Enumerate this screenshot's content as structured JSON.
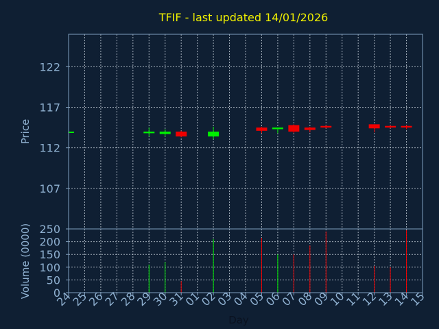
{
  "colors": {
    "background": "#0f1f33",
    "axis": "#7f9fbf",
    "grid": "#c8d2dc",
    "title": "#f0f000",
    "label": "#8fb0d0",
    "up": "#00f000",
    "down": "#f00000"
  },
  "chart_data": {
    "type": "candlestick",
    "title": "TFIF - last updated 14/01/2026",
    "xlabel": "Day",
    "x_ticks": [
      "24",
      "25",
      "26",
      "27",
      "28",
      "29",
      "30",
      "31",
      "01",
      "02",
      "03",
      "04",
      "05",
      "06",
      "07",
      "08",
      "09",
      "10",
      "11",
      "12",
      "13",
      "14",
      "15"
    ],
    "price_panel": {
      "ylabel": "Price",
      "ylim": [
        102,
        126
      ],
      "y_ticks": [
        107,
        112,
        117,
        122
      ],
      "candles": [
        {
          "day": "24",
          "open": 113.9,
          "high": 114.0,
          "low": 113.8,
          "close": 114.0
        },
        {
          "day": "29",
          "open": 113.8,
          "high": 114.5,
          "low": 113.4,
          "close": 114.0
        },
        {
          "day": "30",
          "open": 113.7,
          "high": 114.3,
          "low": 113.4,
          "close": 114.0
        },
        {
          "day": "31",
          "open": 114.0,
          "high": 114.1,
          "low": 113.3,
          "close": 113.4
        },
        {
          "day": "02",
          "open": 113.4,
          "high": 114.6,
          "low": 113.1,
          "close": 114.0
        },
        {
          "day": "05",
          "open": 114.5,
          "high": 114.6,
          "low": 113.8,
          "close": 114.1
        },
        {
          "day": "06",
          "open": 114.3,
          "high": 114.5,
          "low": 113.8,
          "close": 114.5
        },
        {
          "day": "07",
          "open": 114.8,
          "high": 114.9,
          "low": 113.8,
          "close": 114.0
        },
        {
          "day": "08",
          "open": 114.5,
          "high": 114.6,
          "low": 113.9,
          "close": 114.2
        },
        {
          "day": "09",
          "open": 114.7,
          "high": 114.8,
          "low": 114.4,
          "close": 114.5
        },
        {
          "day": "12",
          "open": 114.9,
          "high": 114.9,
          "low": 113.9,
          "close": 114.4
        },
        {
          "day": "13",
          "open": 114.7,
          "high": 114.8,
          "low": 114.4,
          "close": 114.5
        },
        {
          "day": "14",
          "open": 114.7,
          "high": 114.8,
          "low": 114.3,
          "close": 114.5
        }
      ]
    },
    "volume_panel": {
      "ylabel": "Volume (0000)",
      "ylim": [
        0,
        250
      ],
      "y_ticks": [
        0,
        50,
        100,
        150,
        200,
        250
      ],
      "bars": [
        {
          "day": "29",
          "value": 110,
          "direction": "up"
        },
        {
          "day": "30",
          "value": 120,
          "direction": "up"
        },
        {
          "day": "31",
          "value": 45,
          "direction": "down"
        },
        {
          "day": "02",
          "value": 210,
          "direction": "up"
        },
        {
          "day": "05",
          "value": 215,
          "direction": "down"
        },
        {
          "day": "06",
          "value": 150,
          "direction": "up"
        },
        {
          "day": "07",
          "value": 150,
          "direction": "down"
        },
        {
          "day": "08",
          "value": 185,
          "direction": "down"
        },
        {
          "day": "09",
          "value": 240,
          "direction": "down"
        },
        {
          "day": "12",
          "value": 105,
          "direction": "down"
        },
        {
          "day": "13",
          "value": 100,
          "direction": "down"
        },
        {
          "day": "14",
          "value": 245,
          "direction": "down"
        }
      ]
    },
    "grid": true
  }
}
